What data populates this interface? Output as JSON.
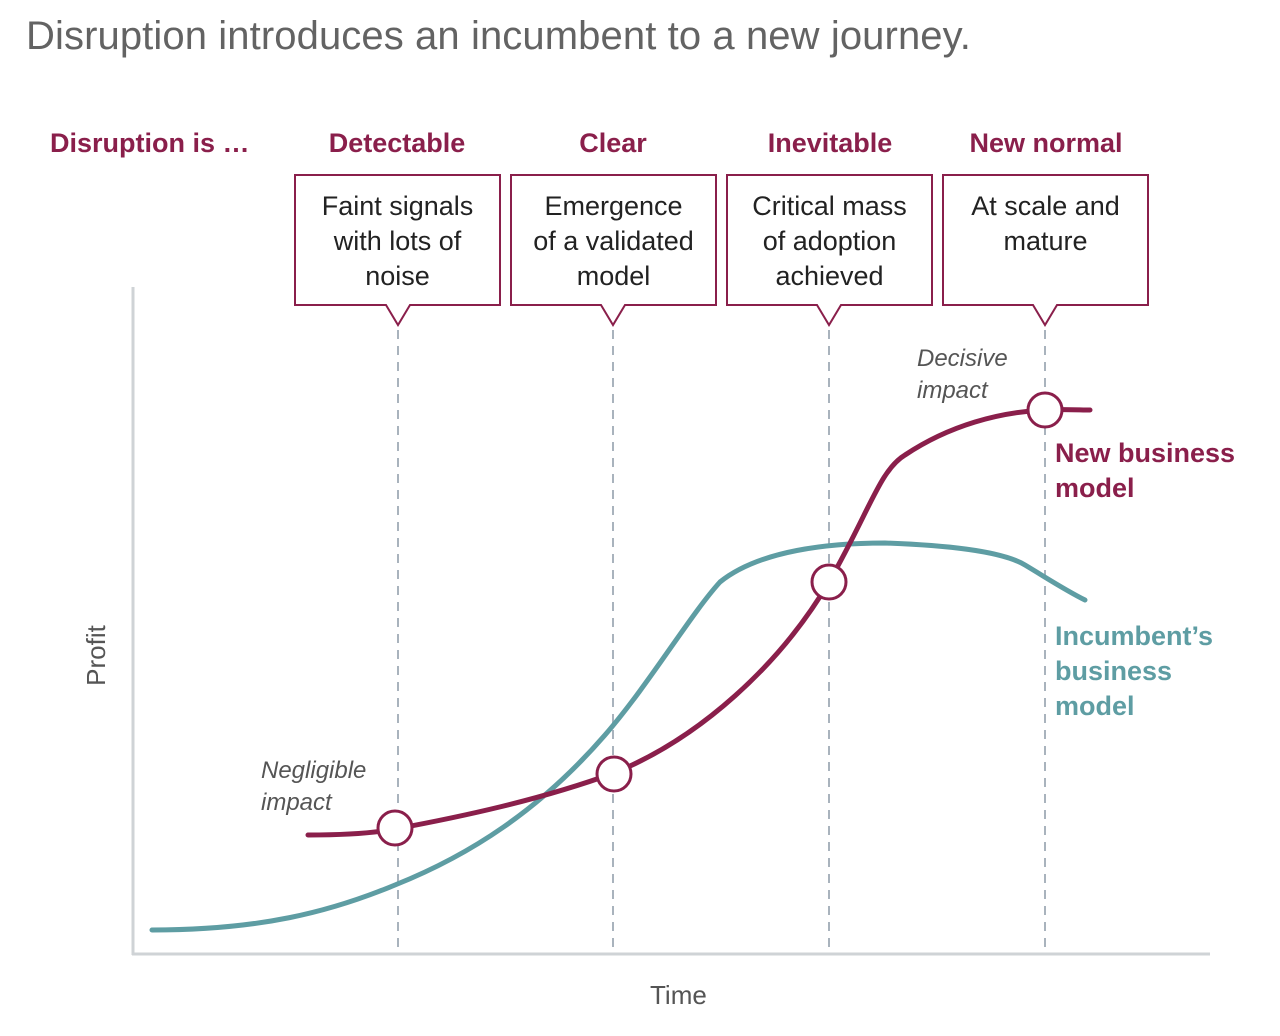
{
  "title": "Disruption introduces an incumbent to a new journey.",
  "colors": {
    "new_model": "#8a1f4b",
    "incumbent": "#5e9da3",
    "axis": "#cfd3d6",
    "guide": "#a9b3bd"
  },
  "stage_row_label": "Disruption is …",
  "stages": [
    {
      "name": "Detectable",
      "description_lines": [
        "Faint signals",
        "with lots of",
        "noise"
      ]
    },
    {
      "name": "Clear",
      "description_lines": [
        "Emergence",
        "of a validated",
        "model"
      ]
    },
    {
      "name": "Inevitable",
      "description_lines": [
        "Critical mass",
        "of adoption",
        "achieved"
      ]
    },
    {
      "name": "New normal",
      "description_lines": [
        "At scale and",
        "mature"
      ]
    }
  ],
  "annotations": {
    "negligible": [
      "Negligible",
      "impact"
    ],
    "decisive": [
      "Decisive",
      "impact"
    ]
  },
  "series": {
    "new_model": [
      "New business",
      "model"
    ],
    "incumbent": [
      "Incumbent’s",
      "business",
      "model"
    ]
  },
  "axes": {
    "x": "Time",
    "y": "Profit"
  }
}
